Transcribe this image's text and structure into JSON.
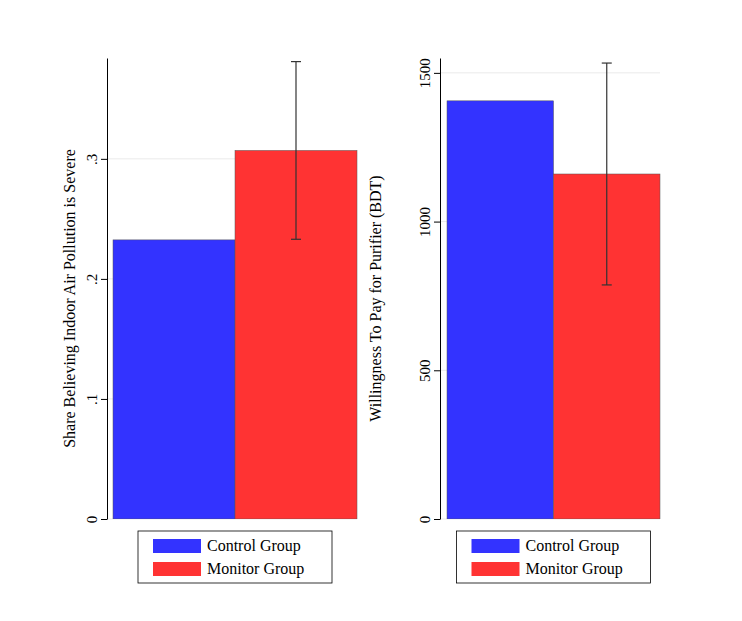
{
  "chart_data": [
    {
      "type": "bar",
      "y_label": "Share Believing Indoor Air Pollution is Severe",
      "series": [
        {
          "name": "Control Group",
          "color": "#3333ff",
          "values": [
            0.2325
          ]
        },
        {
          "name": "Monitor Group",
          "color": "#ff3333",
          "values": [
            0.307
          ],
          "error": [
            0.074
          ]
        }
      ],
      "ylim": [
        0,
        0.384
      ],
      "yticks": [
        0,
        {
          "value": 0.1,
          "label": ".1"
        },
        {
          "value": 0.2,
          "label": ".2"
        },
        {
          "value": 0.3,
          "label": ".3"
        }
      ],
      "grid": true,
      "legend": "bottom"
    },
    {
      "type": "bar",
      "y_label": "Willingness To Pay for Purifier (BDT)",
      "series": [
        {
          "name": "Control Group",
          "color": "#3333ff",
          "values": [
            1406
          ]
        },
        {
          "name": "Monitor Group",
          "color": "#ff3333",
          "values": [
            1160
          ],
          "error": [
            373
          ]
        }
      ],
      "ylim": [
        0,
        1550
      ],
      "yticks": [
        0,
        500,
        1000,
        1500
      ],
      "grid": true,
      "legend": "bottom"
    }
  ]
}
